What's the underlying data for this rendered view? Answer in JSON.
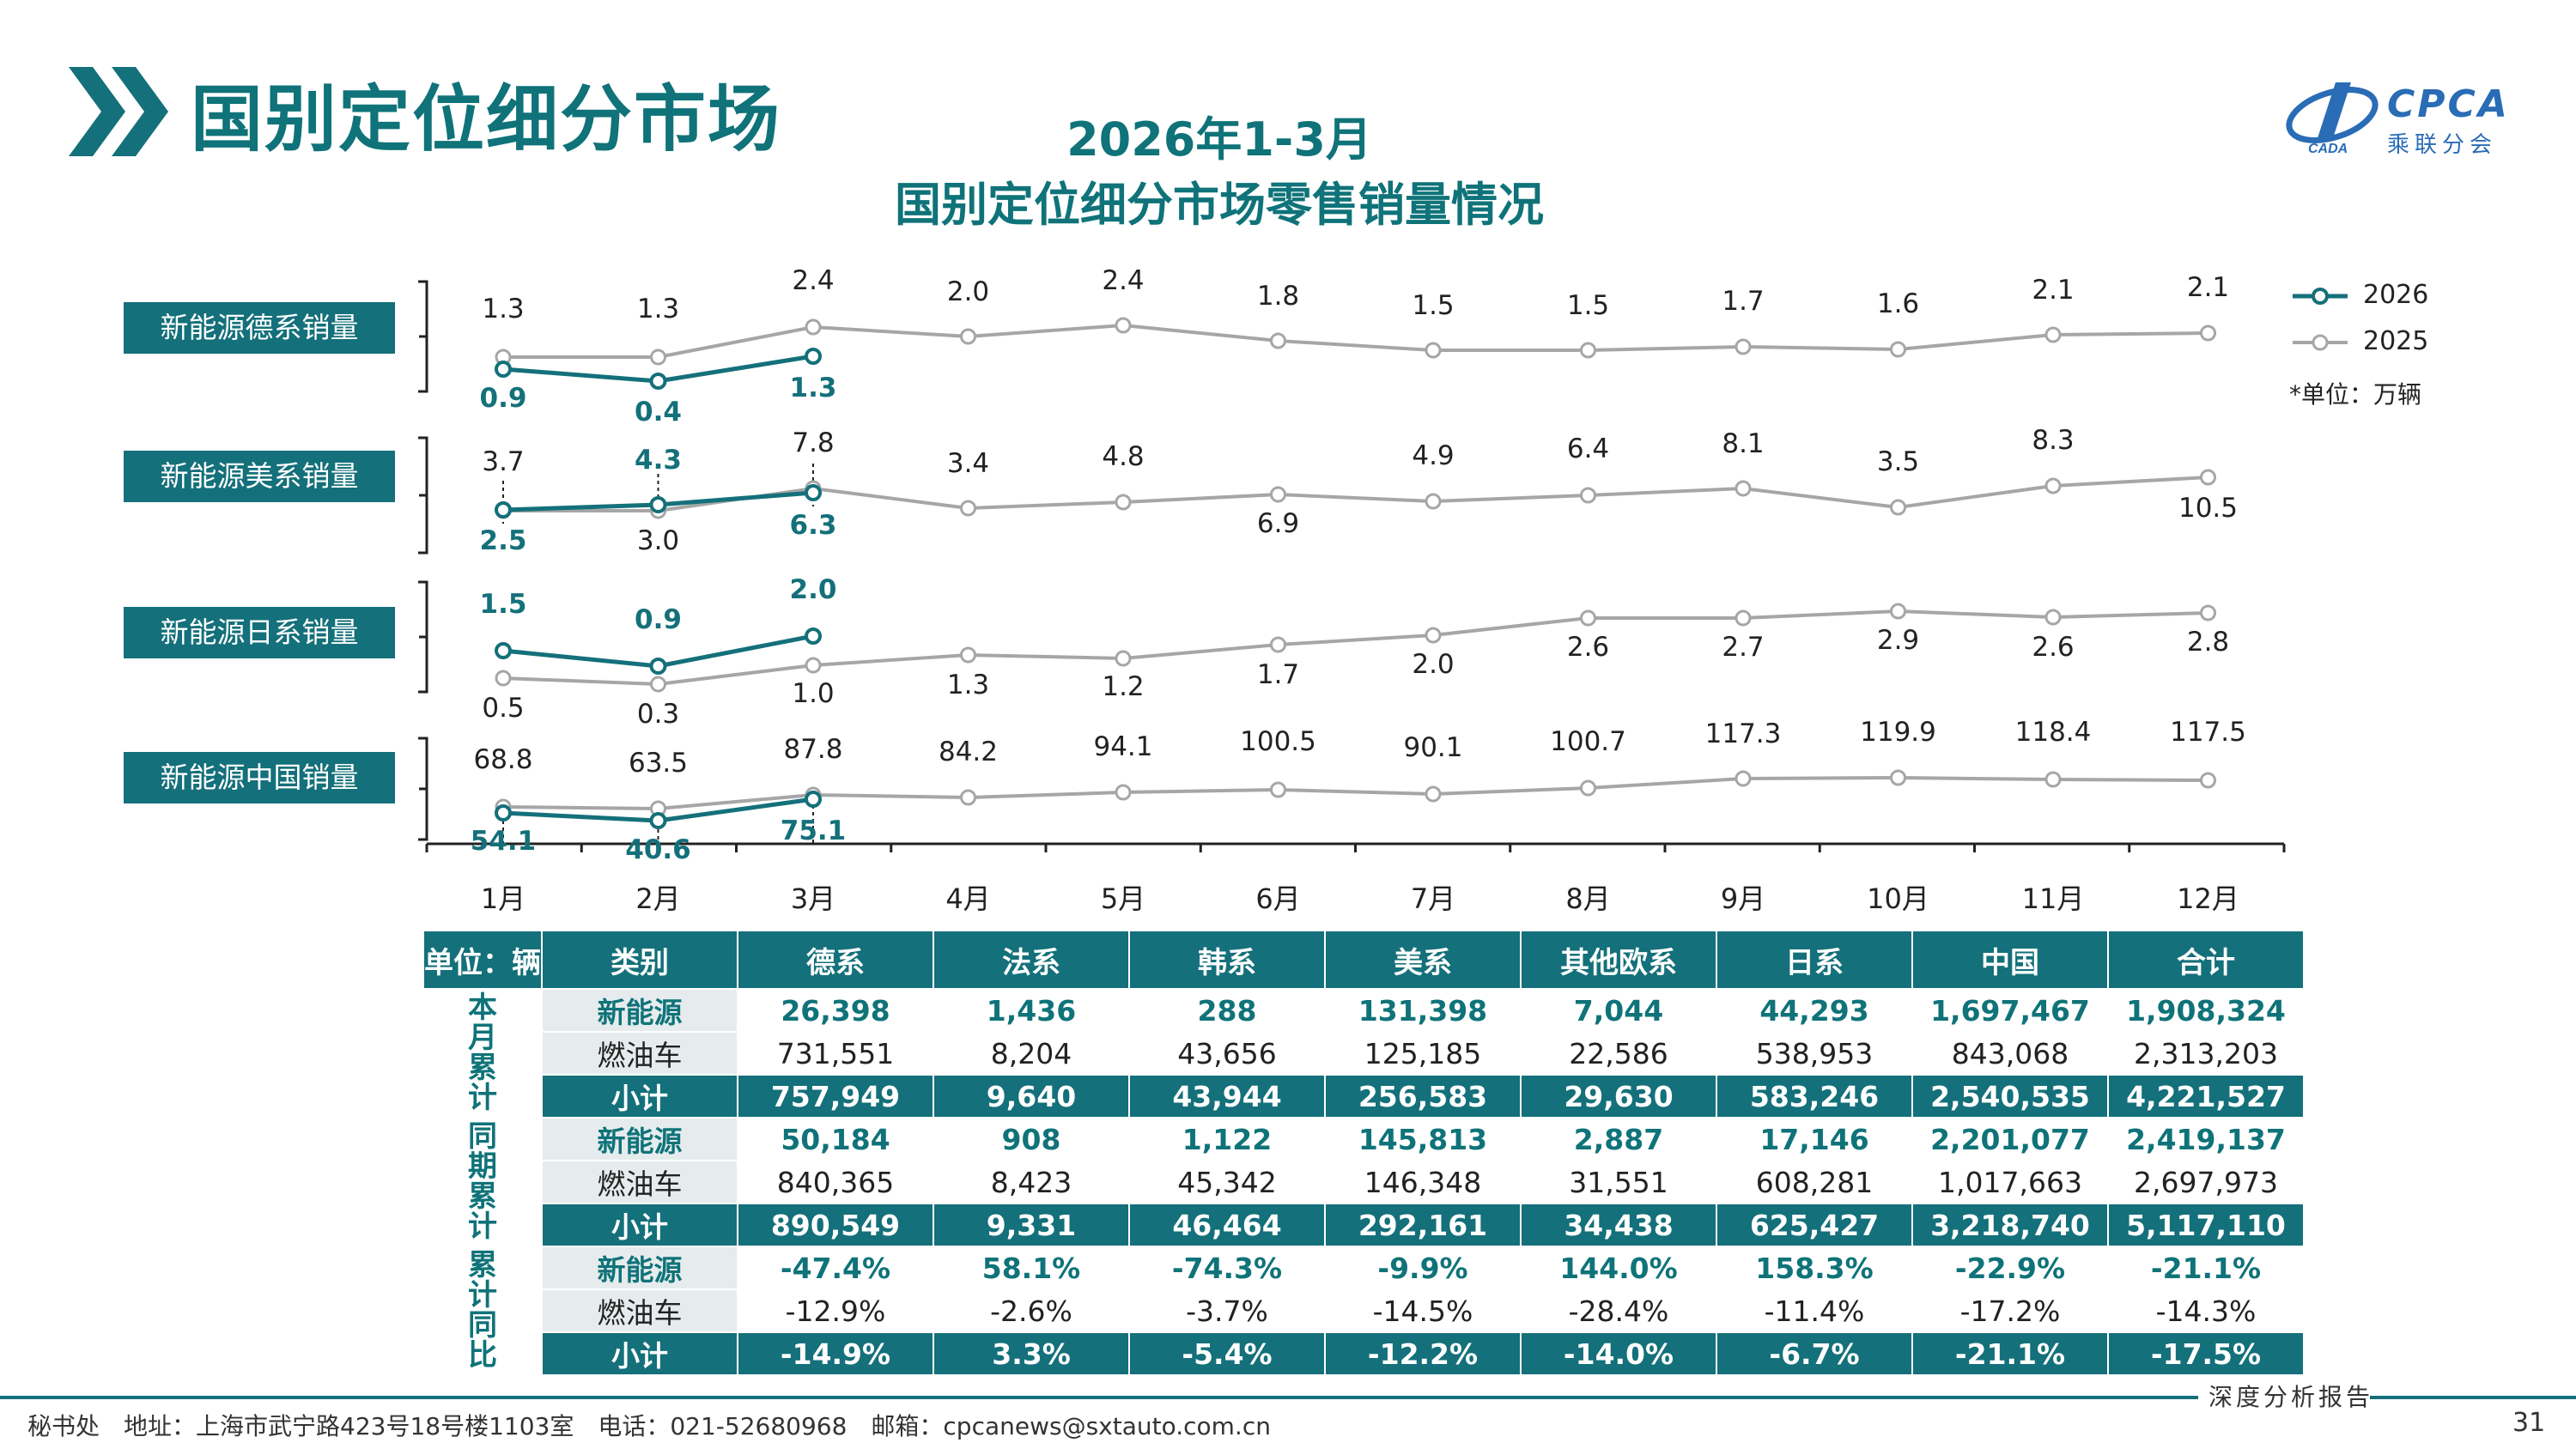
{
  "header": {
    "title": "国别定位细分市场",
    "chart_title_1": "2026年1-3月",
    "chart_title_2": "国别定位细分市场零售销量情况",
    "logo_text": "CPCA",
    "logo_sub": "乘联分会",
    "logo_mark": "CADA"
  },
  "legend": {
    "series_2026": "2026",
    "series_2025": "2025",
    "unit_note": "*单位：万辆"
  },
  "colors": {
    "teal": "#14707a",
    "grey": "#a6a6a6",
    "title": "#0f7379"
  },
  "chart_data": {
    "type": "line",
    "categories": [
      "1月",
      "2月",
      "3月",
      "4月",
      "5月",
      "6月",
      "7月",
      "8月",
      "9月",
      "10月",
      "11月",
      "12月"
    ],
    "unit": "万辆",
    "panels": [
      {
        "label": "新能源德系销量",
        "series": [
          {
            "name": "2026",
            "values": [
              0.9,
              0.4,
              1.3
            ]
          },
          {
            "name": "2025",
            "values": [
              1.3,
              1.3,
              2.4,
              2.0,
              2.4,
              1.8,
              1.5,
              1.5,
              1.7,
              1.6,
              2.1,
              2.1
            ]
          }
        ]
      },
      {
        "label": "新能源美系销量",
        "series": [
          {
            "name": "2026",
            "values": [
              2.5,
              4.3,
              6.3
            ]
          },
          {
            "name": "2025",
            "values": [
              3.7,
              3.0,
              7.8,
              3.4,
              4.8,
              6.9,
              4.9,
              6.4,
              8.1,
              3.5,
              8.3,
              10.5
            ]
          }
        ]
      },
      {
        "label": "新能源日系销量",
        "series": [
          {
            "name": "2026",
            "values": [
              1.5,
              0.9,
              2.0
            ]
          },
          {
            "name": "2025",
            "values": [
              0.5,
              0.3,
              1.0,
              1.3,
              1.2,
              1.7,
              2.0,
              2.6,
              2.7,
              2.9,
              2.6,
              2.8
            ]
          }
        ]
      },
      {
        "label": "新能源中国销量",
        "series": [
          {
            "name": "2026",
            "values": [
              54.1,
              40.6,
              75.1
            ]
          },
          {
            "name": "2025",
            "values": [
              68.8,
              63.5,
              87.8,
              84.2,
              94.1,
              100.5,
              90.1,
              100.7,
              117.3,
              119.9,
              118.4,
              117.5
            ]
          }
        ]
      }
    ]
  },
  "table": {
    "unit_label": "单位：辆",
    "columns": [
      "类别",
      "德系",
      "法系",
      "韩系",
      "美系",
      "其他欧系",
      "日系",
      "中国",
      "合计"
    ],
    "groups": [
      {
        "name": "本月累计",
        "rows": [
          {
            "cat": "新能源",
            "kind": "nev",
            "values": [
              "26,398",
              "1,436",
              "288",
              "131,398",
              "7,044",
              "44,293",
              "1,697,467",
              "1,908,324"
            ]
          },
          {
            "cat": "燃油车",
            "kind": "fuel",
            "values": [
              "731,551",
              "8,204",
              "43,656",
              "125,185",
              "22,586",
              "538,953",
              "843,068",
              "2,313,203"
            ]
          },
          {
            "cat": "小计",
            "kind": "sub",
            "values": [
              "757,949",
              "9,640",
              "43,944",
              "256,583",
              "29,630",
              "583,246",
              "2,540,535",
              "4,221,527"
            ]
          }
        ]
      },
      {
        "name": "同期累计",
        "rows": [
          {
            "cat": "新能源",
            "kind": "nev",
            "values": [
              "50,184",
              "908",
              "1,122",
              "145,813",
              "2,887",
              "17,146",
              "2,201,077",
              "2,419,137"
            ]
          },
          {
            "cat": "燃油车",
            "kind": "fuel",
            "values": [
              "840,365",
              "8,423",
              "45,342",
              "146,348",
              "31,551",
              "608,281",
              "1,017,663",
              "2,697,973"
            ]
          },
          {
            "cat": "小计",
            "kind": "sub",
            "values": [
              "890,549",
              "9,331",
              "46,464",
              "292,161",
              "34,438",
              "625,427",
              "3,218,740",
              "5,117,110"
            ]
          }
        ]
      },
      {
        "name": "累计同比",
        "rows": [
          {
            "cat": "新能源",
            "kind": "nev",
            "values": [
              "-47.4%",
              "58.1%",
              "-74.3%",
              "-9.9%",
              "144.0%",
              "158.3%",
              "-22.9%",
              "-21.1%"
            ]
          },
          {
            "cat": "燃油车",
            "kind": "fuel",
            "values": [
              "-12.9%",
              "-2.6%",
              "-3.7%",
              "-14.5%",
              "-28.4%",
              "-11.4%",
              "-17.2%",
              "-14.3%"
            ]
          },
          {
            "cat": "小计",
            "kind": "sub",
            "values": [
              "-14.9%",
              "3.3%",
              "-5.4%",
              "-12.2%",
              "-14.0%",
              "-6.7%",
              "-21.1%",
              "-17.5%"
            ]
          }
        ]
      }
    ]
  },
  "footer": {
    "address": "秘书处　地址：上海市武宁路423号18号楼1103室　电话：021-52680968　邮箱：cpcanews@sxtauto.com.cn",
    "report_label": "深度分析报告",
    "page": "31"
  }
}
